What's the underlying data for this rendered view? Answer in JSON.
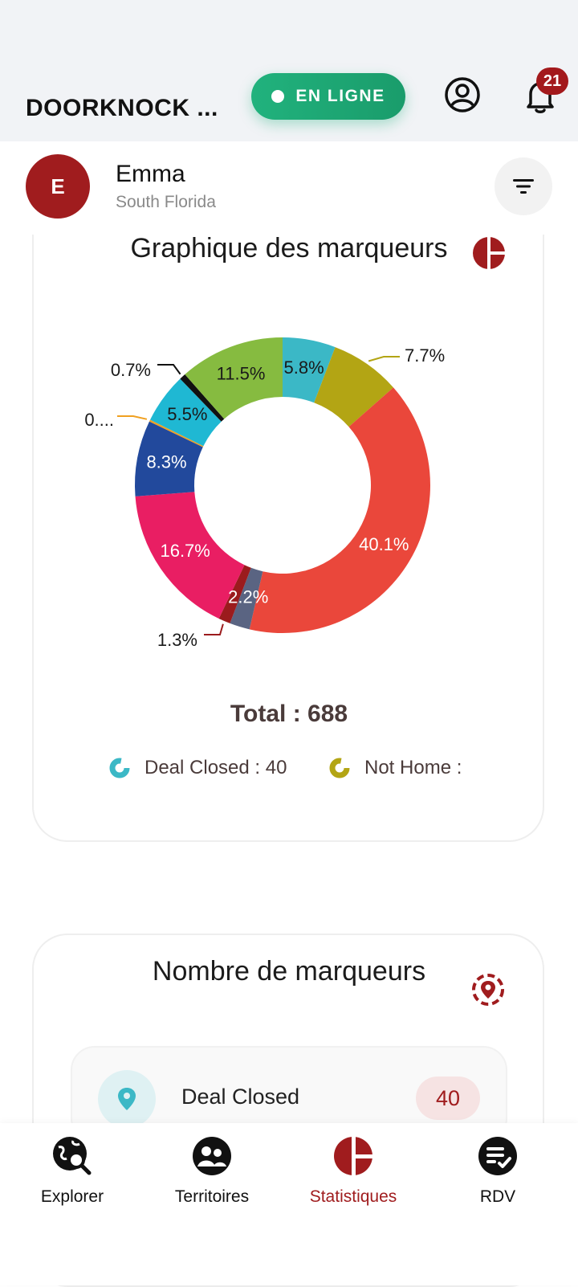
{
  "header": {
    "app_title": "DOORKNOCK ...",
    "status_label": "EN LIGNE",
    "notification_count": "21",
    "colors": {
      "status_bg": "#1fa774",
      "badge": "#a3191c",
      "bar_bg": "#f1f3f6"
    },
    "icons": {
      "profile": "user-circle-icon",
      "notifications": "bell-icon"
    }
  },
  "user": {
    "initial": "E",
    "name": "Emma",
    "region": "South Florida",
    "avatar_color": "#a01c1e",
    "filter_icon": "filter-icon"
  },
  "markers_chart_card": {
    "title": "Graphique des marqueurs",
    "icon": "pie-chart-icon",
    "total_label": "Total : 688",
    "legend": [
      {
        "label": "Deal Closed : 40",
        "color": "#3bb8c6"
      },
      {
        "label": "Not Home :",
        "color": "#b3a514"
      }
    ]
  },
  "chart_data": {
    "type": "pie",
    "subtype": "donut",
    "total": 688,
    "slices": [
      {
        "label": "5.8%",
        "value": 5.8,
        "color": "#3bb8c6",
        "text_color": "#1a1a1a"
      },
      {
        "label": "7.7%",
        "value": 7.7,
        "color": "#b3a514",
        "text_color": "#1a1a1a"
      },
      {
        "label": "40.1%",
        "value": 40.1,
        "color": "#ea473b",
        "text_color": "#ffffff"
      },
      {
        "label": "2.2%",
        "value": 2.2,
        "color": "#5a6482",
        "text_color": "#ffffff"
      },
      {
        "label": "1.3%",
        "value": 1.3,
        "color": "#9b1b1d",
        "text_color": "#1a1a1a"
      },
      {
        "label": "16.7%",
        "value": 16.7,
        "color": "#e91e63",
        "text_color": "#ffffff"
      },
      {
        "label": "8.3%",
        "value": 8.3,
        "color": "#22499c",
        "text_color": "#ffffff"
      },
      {
        "label": "0....",
        "value": 0.2,
        "color": "#f0a020",
        "text_color": "#1a1a1a"
      },
      {
        "label": "5.5%",
        "value": 5.5,
        "color": "#1fb8d3",
        "text_color": "#1a1a1a"
      },
      {
        "label": "0.7%",
        "value": 0.7,
        "color": "#111111",
        "text_color": "#1a1a1a"
      },
      {
        "label": "11.5%",
        "value": 11.5,
        "color": "#86bb40",
        "text_color": "#1a1a1a"
      }
    ]
  },
  "markers_count_card": {
    "title": "Nombre de marqueurs",
    "icon": "target-marker-icon",
    "items": [
      {
        "label": "Deal Closed",
        "count": "40",
        "icon": "map-pin-icon",
        "color": "#3bb8c6"
      }
    ]
  },
  "bottom_nav": {
    "items": [
      {
        "label": "Explorer",
        "icon": "globe-search-icon",
        "active": false
      },
      {
        "label": "Territoires",
        "icon": "people-circle-icon",
        "active": false
      },
      {
        "label": "Statistiques",
        "icon": "pie-chart-icon",
        "active": true
      },
      {
        "label": "RDV",
        "icon": "checklist-icon",
        "active": false
      }
    ],
    "active_color": "#a01c1e"
  }
}
